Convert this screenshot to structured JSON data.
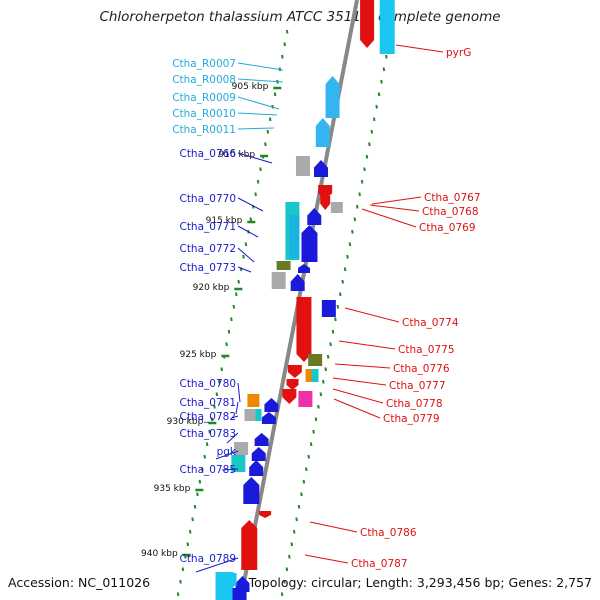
{
  "title": "Chloroherpeton thalassium ATCC 35110, complete genome",
  "footer": {
    "accession": "Accession: NC_011026",
    "summary": "Topology: circular; Length: 3,293,456 bp; Genes: 2,757"
  },
  "colors": {
    "left_label": "#1a1acc",
    "rna_label": "#22aadd",
    "right_label": "#dd1111",
    "axis": "#888888",
    "tick": "#228822"
  },
  "kbp_ticks": [
    "905 kbp",
    "910 kbp",
    "915 kbp",
    "920 kbp",
    "925 kbp",
    "930 kbp",
    "935 kbp",
    "940 kbp"
  ],
  "left_labels": [
    {
      "text": "Ctha_R0007",
      "kind": "rna"
    },
    {
      "text": "Ctha_R0008",
      "kind": "rna"
    },
    {
      "text": "Ctha_R0009",
      "kind": "rna"
    },
    {
      "text": "Ctha_R0010",
      "kind": "rna"
    },
    {
      "text": "Ctha_R0011",
      "kind": "rna"
    },
    {
      "text": "Ctha_0766",
      "kind": "gene"
    },
    {
      "text": "Ctha_0770",
      "kind": "gene"
    },
    {
      "text": "Ctha_0771",
      "kind": "gene"
    },
    {
      "text": "Ctha_0772",
      "kind": "gene"
    },
    {
      "text": "Ctha_0773",
      "kind": "gene"
    },
    {
      "text": "Ctha_0780",
      "kind": "gene"
    },
    {
      "text": "Ctha_0781",
      "kind": "gene"
    },
    {
      "text": "Ctha_0782",
      "kind": "gene"
    },
    {
      "text": "Ctha_0783",
      "kind": "gene"
    },
    {
      "text": "pgk",
      "kind": "gene"
    },
    {
      "text": "Ctha_0785",
      "kind": "gene"
    },
    {
      "text": "Ctha_0789",
      "kind": "gene"
    }
  ],
  "right_labels": [
    "pyrG",
    "Ctha_0767",
    "Ctha_0768",
    "Ctha_0769",
    "Ctha_0774",
    "Ctha_0775",
    "Ctha_0776",
    "Ctha_0777",
    "Ctha_0778",
    "Ctha_0779",
    "Ctha_0786",
    "Ctha_0787"
  ]
}
